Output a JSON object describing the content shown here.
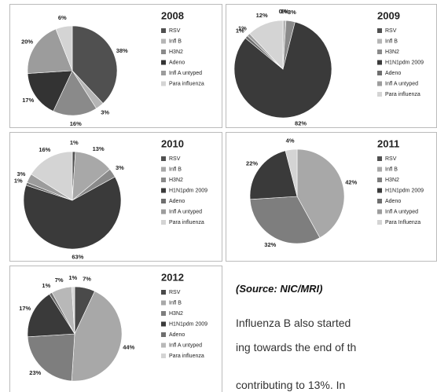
{
  "chart_data": [
    {
      "type": "pie",
      "title": "2008",
      "categories": [
        "RSV",
        "Infl B",
        "H3N2",
        "Adeno",
        "Infl A untyped",
        "Para influenza"
      ],
      "values": [
        38,
        3,
        16,
        17,
        20,
        6
      ],
      "value_labels": [
        "38%",
        "3%",
        "16%",
        "17%",
        "20%",
        "6%"
      ],
      "colors": [
        "#505050",
        "#b5b5b5",
        "#8a8a8a",
        "#333333",
        "#9c9c9c",
        "#d4d4d4"
      ]
    },
    {
      "type": "pie",
      "title": "2009",
      "categories": [
        "RSV",
        "Infl B",
        "H3N2",
        "H1N1pdm 2009",
        "Adeno",
        "Infl A untyped",
        "Para influenza"
      ],
      "values": [
        0,
        1,
        3,
        82,
        1,
        1,
        12
      ],
      "value_labels": [
        "0%",
        "1%",
        "3%",
        "82%",
        "1%",
        "1%",
        "12%"
      ],
      "colors": [
        "#505050",
        "#b5b5b5",
        "#8a8a8a",
        "#3a3a3a",
        "#6e6e6e",
        "#9c9c9c",
        "#d4d4d4"
      ]
    },
    {
      "type": "pie",
      "title": "2010",
      "categories": [
        "RSV",
        "Infl B",
        "H3N2",
        "H1N1pdm 2009",
        "Adeno",
        "Infl A untyped",
        "Para influenza"
      ],
      "values": [
        1,
        13,
        3,
        63,
        1,
        3,
        16
      ],
      "value_labels": [
        "1%",
        "13%",
        "3%",
        "63%",
        "1%",
        "3%",
        "16%"
      ],
      "colors": [
        "#505050",
        "#a8a8a8",
        "#8a8a8a",
        "#3a3a3a",
        "#6e6e6e",
        "#9c9c9c",
        "#d4d4d4"
      ]
    },
    {
      "type": "pie",
      "title": "2011",
      "categories": [
        "RSV",
        "Infl B",
        "H3N2",
        "H1N1pdm 2009",
        "Adeno",
        "Infl A untyped",
        "Para Influenza"
      ],
      "values": [
        null,
        42,
        32,
        22,
        null,
        null,
        4
      ],
      "value_labels": [
        null,
        "42%",
        "32%",
        "22%",
        null,
        null,
        "4%"
      ],
      "colors": [
        "#505050",
        "#a8a8a8",
        "#7e7e7e",
        "#3a3a3a",
        "#6e6e6e",
        "#9c9c9c",
        "#d4d4d4"
      ]
    },
    {
      "type": "pie",
      "title": "2012",
      "categories": [
        "RSV",
        "Infl B",
        "H3N2",
        "H1N1pdm 2009",
        "Adeno",
        "Infl A untyped",
        "Para influenza"
      ],
      "values": [
        7,
        44,
        23,
        17,
        1,
        7,
        1
      ],
      "value_labels": [
        "7%",
        "44%",
        "23%",
        "17%",
        "1%",
        "7%",
        "1%"
      ],
      "colors": [
        "#4a4a4a",
        "#a8a8a8",
        "#7e7e7e",
        "#3a3a3a",
        "#6e6e6e",
        "#b8b8b8",
        "#d4d4d4"
      ]
    }
  ],
  "document": {
    "source": "(Source: NIC/MRI)",
    "lines": [
      "Influenza B also started",
      "ing towards the end of th",
      "contributing  to  13%.  In"
    ]
  }
}
